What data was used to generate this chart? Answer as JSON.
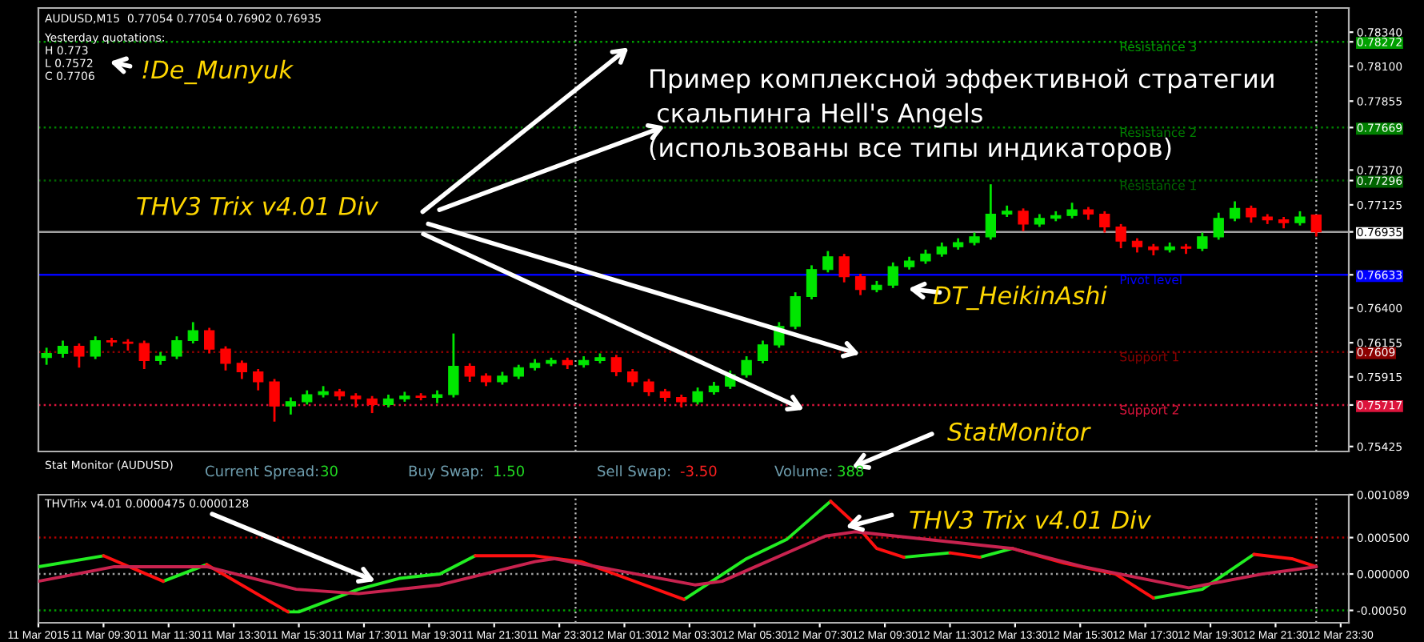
{
  "chart_data": [
    {
      "type": "candlestick",
      "title": "AUDUSD,M15  0.77054 0.77054 0.76902 0.76935",
      "x": [
        "2015-03-11T07:45",
        "2015-03-11T08:15",
        "2015-03-11T08:45",
        "2015-03-11T09:15",
        "2015-03-11T09:45",
        "2015-03-11T10:15",
        "2015-03-11T10:45",
        "2015-03-11T11:15",
        "2015-03-11T11:45",
        "2015-03-11T12:15",
        "2015-03-11T12:45",
        "2015-03-11T13:15",
        "2015-03-11T13:45",
        "2015-03-11T14:15",
        "2015-03-11T14:45",
        "2015-03-11T15:15",
        "2015-03-11T15:45",
        "2015-03-11T16:15",
        "2015-03-11T16:45",
        "2015-03-11T17:15",
        "2015-03-11T17:45",
        "2015-03-11T18:15",
        "2015-03-11T18:45",
        "2015-03-11T19:15",
        "2015-03-11T19:45",
        "2015-03-11T20:15",
        "2015-03-11T20:45",
        "2015-03-11T21:15",
        "2015-03-11T21:45",
        "2015-03-11T22:15",
        "2015-03-11T22:45",
        "2015-03-11T23:15",
        "2015-03-11T23:45",
        "2015-03-12T00:15",
        "2015-03-12T00:45",
        "2015-03-12T01:15",
        "2015-03-12T01:45",
        "2015-03-12T02:15",
        "2015-03-12T02:45",
        "2015-03-12T03:15",
        "2015-03-12T03:45",
        "2015-03-12T04:15",
        "2015-03-12T04:45",
        "2015-03-12T05:15",
        "2015-03-12T05:45",
        "2015-03-12T06:15",
        "2015-03-12T06:45",
        "2015-03-12T07:15",
        "2015-03-12T07:45",
        "2015-03-12T08:15",
        "2015-03-12T08:45",
        "2015-03-12T09:15",
        "2015-03-12T09:45",
        "2015-03-12T10:15",
        "2015-03-12T10:45",
        "2015-03-12T11:15",
        "2015-03-12T11:45",
        "2015-03-12T12:15",
        "2015-03-12T12:45",
        "2015-03-12T13:15",
        "2015-03-12T13:45",
        "2015-03-12T14:15",
        "2015-03-12T14:45",
        "2015-03-12T15:15",
        "2015-03-12T15:45",
        "2015-03-12T16:15",
        "2015-03-12T16:45",
        "2015-03-12T17:15",
        "2015-03-12T17:45",
        "2015-03-12T18:15",
        "2015-03-12T18:45",
        "2015-03-12T19:15",
        "2015-03-12T19:45",
        "2015-03-12T20:15",
        "2015-03-12T20:45",
        "2015-03-12T21:15",
        "2015-03-12T21:45",
        "2015-03-12T22:15",
        "2015-03-12T22:45"
      ],
      "ohlc": [
        [
          0.7605,
          0.7612,
          0.76,
          0.7608
        ],
        [
          0.7608,
          0.7617,
          0.7605,
          0.7613
        ],
        [
          0.7613,
          0.7615,
          0.7598,
          0.7606
        ],
        [
          0.7606,
          0.762,
          0.7604,
          0.7617
        ],
        [
          0.7617,
          0.7619,
          0.7613,
          0.7616
        ],
        [
          0.7616,
          0.7618,
          0.761,
          0.7615
        ],
        [
          0.7615,
          0.7617,
          0.7597,
          0.7603
        ],
        [
          0.7603,
          0.7609,
          0.76,
          0.7606
        ],
        [
          0.7606,
          0.762,
          0.7604,
          0.7617
        ],
        [
          0.7617,
          0.763,
          0.7615,
          0.7624
        ],
        [
          0.7624,
          0.7626,
          0.7608,
          0.7611
        ],
        [
          0.7611,
          0.7613,
          0.7596,
          0.7601
        ],
        [
          0.7601,
          0.7603,
          0.759,
          0.7595
        ],
        [
          0.7595,
          0.7597,
          0.7582,
          0.7588
        ],
        [
          0.7588,
          0.759,
          0.756,
          0.7571
        ],
        [
          0.7571,
          0.7577,
          0.7565,
          0.7574
        ],
        [
          0.7574,
          0.7582,
          0.7572,
          0.7579
        ],
        [
          0.7579,
          0.7585,
          0.7577,
          0.7581
        ],
        [
          0.7581,
          0.7583,
          0.7575,
          0.7578
        ],
        [
          0.7578,
          0.758,
          0.757,
          0.7576
        ],
        [
          0.7576,
          0.7578,
          0.7566,
          0.7572
        ],
        [
          0.7572,
          0.7579,
          0.757,
          0.7576
        ],
        [
          0.7576,
          0.7581,
          0.7574,
          0.7578
        ],
        [
          0.7578,
          0.758,
          0.7575,
          0.7577
        ],
        [
          0.7577,
          0.7582,
          0.7573,
          0.7579
        ],
        [
          0.7579,
          0.7622,
          0.7577,
          0.7599
        ],
        [
          0.7599,
          0.7601,
          0.7588,
          0.7592
        ],
        [
          0.7592,
          0.7594,
          0.7585,
          0.7588
        ],
        [
          0.7588,
          0.7595,
          0.7586,
          0.7592
        ],
        [
          0.7592,
          0.76,
          0.759,
          0.7598
        ],
        [
          0.7598,
          0.7604,
          0.7596,
          0.7601
        ],
        [
          0.7601,
          0.7605,
          0.7599,
          0.7603
        ],
        [
          0.7603,
          0.7605,
          0.7597,
          0.76
        ],
        [
          0.76,
          0.7606,
          0.7598,
          0.7603
        ],
        [
          0.7603,
          0.7608,
          0.7601,
          0.7605
        ],
        [
          0.7605,
          0.7607,
          0.7592,
          0.7595
        ],
        [
          0.7595,
          0.7597,
          0.7585,
          0.7588
        ],
        [
          0.7588,
          0.759,
          0.7578,
          0.7581
        ],
        [
          0.7581,
          0.7583,
          0.7574,
          0.7577
        ],
        [
          0.7577,
          0.7579,
          0.757,
          0.7574
        ],
        [
          0.7574,
          0.7584,
          0.7572,
          0.7581
        ],
        [
          0.7581,
          0.7588,
          0.7579,
          0.7585
        ],
        [
          0.7585,
          0.7596,
          0.7583,
          0.7593
        ],
        [
          0.7593,
          0.7606,
          0.7591,
          0.7603
        ],
        [
          0.7603,
          0.7617,
          0.7601,
          0.7614
        ],
        [
          0.7614,
          0.763,
          0.7612,
          0.7627
        ],
        [
          0.7627,
          0.7651,
          0.7625,
          0.7648
        ],
        [
          0.7648,
          0.767,
          0.7646,
          0.7667
        ],
        [
          0.7667,
          0.768,
          0.7665,
          0.7676
        ],
        [
          0.7676,
          0.7678,
          0.7658,
          0.7662
        ],
        [
          0.7662,
          0.7664,
          0.7649,
          0.7653
        ],
        [
          0.7653,
          0.7659,
          0.7651,
          0.7656
        ],
        [
          0.7656,
          0.7672,
          0.7654,
          0.7669
        ],
        [
          0.7669,
          0.7676,
          0.7667,
          0.7673
        ],
        [
          0.7673,
          0.7681,
          0.7671,
          0.7678
        ],
        [
          0.7678,
          0.7686,
          0.7676,
          0.7683
        ],
        [
          0.7683,
          0.7689,
          0.7681,
          0.7686
        ],
        [
          0.7686,
          0.7693,
          0.7684,
          0.769
        ],
        [
          0.769,
          0.7727,
          0.7688,
          0.7706
        ],
        [
          0.7706,
          0.7712,
          0.7704,
          0.7708
        ],
        [
          0.7708,
          0.771,
          0.7694,
          0.7699
        ],
        [
          0.7699,
          0.7706,
          0.7697,
          0.7703
        ],
        [
          0.7703,
          0.7708,
          0.7701,
          0.7705
        ],
        [
          0.7705,
          0.7714,
          0.7703,
          0.7709
        ],
        [
          0.7709,
          0.7711,
          0.7702,
          0.7706
        ],
        [
          0.7706,
          0.7708,
          0.7693,
          0.7697
        ],
        [
          0.7697,
          0.7699,
          0.7682,
          0.7687
        ],
        [
          0.7687,
          0.7689,
          0.7679,
          0.7683
        ],
        [
          0.7683,
          0.7685,
          0.7677,
          0.7681
        ],
        [
          0.7681,
          0.7686,
          0.7679,
          0.7683
        ],
        [
          0.7683,
          0.7685,
          0.7678,
          0.7682
        ],
        [
          0.7682,
          0.7693,
          0.768,
          0.769
        ],
        [
          0.769,
          0.7707,
          0.7688,
          0.7703
        ],
        [
          0.7703,
          0.7715,
          0.7701,
          0.771
        ],
        [
          0.771,
          0.7712,
          0.77,
          0.7704
        ],
        [
          0.7704,
          0.7706,
          0.7699,
          0.7702
        ],
        [
          0.7702,
          0.7704,
          0.7696,
          0.77
        ],
        [
          0.77,
          0.7708,
          0.7698,
          0.7704
        ],
        [
          0.77054,
          0.77054,
          0.76902,
          0.76935
        ]
      ],
      "colors": [
        "#00e600",
        "#00e600",
        "#ff0000",
        "#00e600",
        "#ff0000",
        "#ff0000",
        "#ff0000",
        "#00e600",
        "#00e600",
        "#00e600",
        "#ff0000",
        "#ff0000",
        "#ff0000",
        "#ff0000",
        "#ff0000",
        "#00e600",
        "#00e600",
        "#00e600",
        "#ff0000",
        "#ff0000",
        "#ff0000",
        "#00e600",
        "#00e600",
        "#ff0000",
        "#00e600",
        "#00e600",
        "#ff0000",
        "#ff0000",
        "#00e600",
        "#00e600",
        "#00e600",
        "#00e600",
        "#ff0000",
        "#00e600",
        "#00e600",
        "#ff0000",
        "#ff0000",
        "#ff0000",
        "#ff0000",
        "#ff0000",
        "#00e600",
        "#00e600",
        "#00e600",
        "#00e600",
        "#00e600",
        "#00e600",
        "#00e600",
        "#00e600",
        "#00e600",
        "#ff0000",
        "#ff0000",
        "#00e600",
        "#00e600",
        "#00e600",
        "#00e600",
        "#00e600",
        "#00e600",
        "#00e600",
        "#00e600",
        "#00e600",
        "#ff0000",
        "#00e600",
        "#00e600",
        "#00e600",
        "#ff0000",
        "#ff0000",
        "#ff0000",
        "#ff0000",
        "#ff0000",
        "#00e600",
        "#ff0000",
        "#00e600",
        "#00e600",
        "#00e600",
        "#ff0000",
        "#ff0000",
        "#ff0000",
        "#00e600",
        "#ff0000"
      ],
      "xlim": [
        "2015-03-11T07:30",
        "2015-03-12T23:45"
      ],
      "ylim": [
        0.7539,
        0.7851
      ],
      "yticks": [
        {
          "value": 0.7834,
          "label": "0.78340"
        },
        0.78272,
        {
          "value": 0.781,
          "label": "0.78100"
        },
        0.77855,
        0.77669,
        {
          "value": 0.7737,
          "label": "0.77370"
        },
        0.77296,
        0.77125,
        0.76935,
        0.76633,
        {
          "value": 0.764,
          "label": "0.76400"
        },
        0.76155,
        0.7609,
        0.75915,
        0.75717,
        0.75425
      ],
      "tick_labels": "y",
      "ref_lines": [
        {
          "axis": "y",
          "value": 0.78272,
          "label": "Resistance 3",
          "color": "#00a000",
          "line_style": "dotted"
        },
        {
          "axis": "y",
          "value": 0.77669,
          "label": "Resistance 2",
          "color": "#008000",
          "line_style": "dotted"
        },
        {
          "axis": "y",
          "value": 0.77296,
          "label": "Resistance 1",
          "color": "#006400",
          "line_style": "dotted"
        },
        {
          "axis": "y",
          "value": 0.76935,
          "color": "#a0a0a0",
          "line_style": "solid"
        },
        {
          "axis": "y",
          "value": 0.76633,
          "label": "Pivot level",
          "color": "#0000ff",
          "line_style": "solid"
        },
        {
          "axis": "y",
          "value": 0.7609,
          "label": "Support 1",
          "color": "#8b0000",
          "line_style": "dotted"
        },
        {
          "axis": "y",
          "value": 0.75717,
          "label": "Support 2",
          "color": "#dc143c",
          "line_style": "dotted"
        },
        {
          "axis": "x",
          "value": "2015-03-12T00:00",
          "color": "#c0c0c0",
          "line_style": "dotted"
        },
        {
          "axis": "x",
          "value": "2015-03-12T22:45",
          "color": "#c0c0c0",
          "line_style": "dotted"
        }
      ],
      "annotations": [
        "Yesterday quotations:",
        "H 0.773",
        "L 0.7572",
        "C 0.7706",
        "!De_Munyuk",
        "THV3 Trix v4.01 Div",
        "Пример комплексной эффективной стратегии\n скальпинга Hell's Angels\n(использованы все типы индикаторов)",
        "DT_HeikinAshi",
        "StatMonitor"
      ]
    },
    {
      "type": "other",
      "title": "Stat Monitor (AUDUSD)",
      "annotations": [
        "Current Spread:",
        "30",
        "Buy Swap:",
        "1.50",
        "Sell Swap:",
        "-3.50",
        "Volume:",
        "388"
      ]
    },
    {
      "type": "line",
      "title": "THVTrix v4.01 0.0000475 0.0000128",
      "series": [
        {
          "color": "#22ee22",
          "x": [
            "2015-03-11T07:30",
            "2015-03-11T09:30",
            null,
            "2015-03-11T11:20",
            "2015-03-11T12:40",
            null,
            "2015-03-11T15:10",
            "2015-03-11T15:30",
            "2015-03-11T17:20",
            "2015-03-11T18:35",
            "2015-03-11T19:50",
            "2015-03-11T20:55",
            null,
            "2015-03-12T03:20",
            "2015-03-12T05:15",
            "2015-03-12T06:30",
            "2015-03-12T07:50",
            null,
            "2015-03-12T10:05",
            "2015-03-12T11:30",
            null,
            "2015-03-12T12:25",
            "2015-03-12T13:25",
            null,
            "2015-03-12T17:45",
            "2015-03-12T19:15",
            "2015-03-12T20:50"
          ],
          "values": [
            0.0001,
            0.00025,
            null,
            -0.0001,
            0.00013,
            null,
            -0.00052,
            -0.00052,
            -0.00021,
            -6e-05,
            0.0,
            0.00025,
            null,
            -0.00035,
            0.00021,
            0.00048,
            0.001,
            null,
            0.00023,
            0.00029,
            null,
            0.00023,
            0.00035,
            null,
            -0.00033,
            -0.00021,
            0.00027
          ]
        },
        {
          "color": "#ff1010",
          "x": [
            "2015-03-11T09:30",
            "2015-03-11T11:20",
            null,
            "2015-03-11T12:40",
            "2015-03-11T15:10",
            null,
            "2015-03-11T20:55",
            "2015-03-11T22:45",
            "2015-03-12T00:10",
            "2015-03-12T03:20",
            null,
            "2015-03-12T07:50",
            "2015-03-12T08:35",
            "2015-03-12T09:15",
            "2015-03-12T10:05",
            null,
            "2015-03-12T11:30",
            "2015-03-12T12:25",
            null,
            "2015-03-12T13:25",
            "2015-03-12T15:00",
            "2015-03-12T16:35",
            "2015-03-12T17:45",
            null,
            "2015-03-12T20:50",
            "2015-03-12T22:00",
            "2015-03-12T22:45"
          ],
          "values": [
            0.00025,
            -0.0001,
            null,
            0.00013,
            -0.00052,
            null,
            0.00025,
            0.00025,
            0.00017,
            -0.00035,
            null,
            0.001,
            0.00069,
            0.00035,
            0.00023,
            null,
            0.00029,
            0.00023,
            null,
            0.00035,
            0.00015,
            0.0,
            -0.00033,
            null,
            0.00027,
            0.00021,
            0.0001
          ]
        },
        {
          "color": "#c8234f",
          "x": [
            "2015-03-11T07:30",
            "2015-03-11T09:50",
            "2015-03-11T12:40",
            "2015-03-11T15:25",
            "2015-03-11T17:20",
            "2015-03-11T19:50",
            "2015-03-11T22:45",
            "2015-03-11T23:20",
            "2015-03-12T03:40",
            "2015-03-12T04:30",
            "2015-03-12T07:40",
            "2015-03-12T08:35",
            "2015-03-12T13:25",
            "2015-03-12T15:35",
            "2015-03-12T18:50",
            "2015-03-12T21:05",
            "2015-03-12T22:45"
          ],
          "values": [
            -0.0001,
            0.0001,
            0.0001,
            -0.00021,
            -0.00027,
            -0.00015,
            0.00017,
            0.00021,
            -0.00015,
            -0.0001,
            0.00052,
            0.00058,
            0.00035,
            0.0001,
            -0.00019,
            0.0,
            0.0001
          ]
        }
      ],
      "xlim": [
        "2015-03-11T07:30",
        "2015-03-12T23:45"
      ],
      "ylim": [
        -0.00067,
        0.001089
      ],
      "xticks": [
        {
          "value": "2015-03-11T07:30",
          "label": "11 Mar 2015"
        },
        {
          "value": "2015-03-11T09:30",
          "label": "11 Mar 09:30"
        },
        {
          "value": "2015-03-11T11:30",
          "label": "11 Mar 11:30"
        },
        {
          "value": "2015-03-11T13:30",
          "label": "11 Mar 13:30"
        },
        {
          "value": "2015-03-11T15:30",
          "label": "11 Mar 15:30"
        },
        {
          "value": "2015-03-11T17:30",
          "label": "11 Mar 17:30"
        },
        {
          "value": "2015-03-11T19:30",
          "label": "11 Mar 19:30"
        },
        {
          "value": "2015-03-11T21:30",
          "label": "11 Mar 21:30"
        },
        {
          "value": "2015-03-11T23:30",
          "label": "11 Mar 23:30"
        },
        {
          "value": "2015-03-12T01:30",
          "label": "12 Mar 01:30"
        },
        {
          "value": "2015-03-12T03:30",
          "label": "12 Mar 03:30"
        },
        {
          "value": "2015-03-12T05:30",
          "label": "12 Mar 05:30"
        },
        {
          "value": "2015-03-12T07:30",
          "label": "12 Mar 07:30"
        },
        {
          "value": "2015-03-12T09:30",
          "label": "12 Mar 09:30"
        },
        {
          "value": "2015-03-12T11:30",
          "label": "12 Mar 11:30"
        },
        {
          "value": "2015-03-12T13:30",
          "label": "12 Mar 13:30"
        },
        {
          "value": "2015-03-12T15:30",
          "label": "12 Mar 15:30"
        },
        {
          "value": "2015-03-12T17:30",
          "label": "12 Mar 17:30"
        },
        {
          "value": "2015-03-12T19:30",
          "label": "12 Mar 19:30"
        },
        {
          "value": "2015-03-12T21:30",
          "label": "12 Mar 21:30"
        },
        {
          "value": "2015-03-12T23:30",
          "label": "12 Mar 23:30"
        }
      ],
      "yticks": [
        0.001089,
        {
          "value": 0.0005,
          "label": "0.000500"
        },
        {
          "value": 0,
          "label": "0.000000"
        },
        {
          "value": -0.0005,
          "label": "-0.00050"
        }
      ],
      "ref_lines": [
        {
          "axis": "y",
          "value": 0.0005,
          "color": "#b00000",
          "line_style": "dotted"
        },
        {
          "axis": "y",
          "value": 0,
          "color": "#a0a0a0",
          "line_style": "dotted"
        },
        {
          "axis": "y",
          "value": -0.0005,
          "color": "#00a000",
          "line_style": "dotted"
        },
        {
          "axis": "x",
          "value": "2015-03-12T00:00",
          "color": "#c0c0c0",
          "line_style": "dotted"
        },
        {
          "axis": "x",
          "value": "2015-03-12T22:45",
          "color": "#c0c0c0",
          "line_style": "dotted"
        }
      ],
      "annotations": [
        "THV3 Trix v4.01 Div"
      ]
    }
  ]
}
